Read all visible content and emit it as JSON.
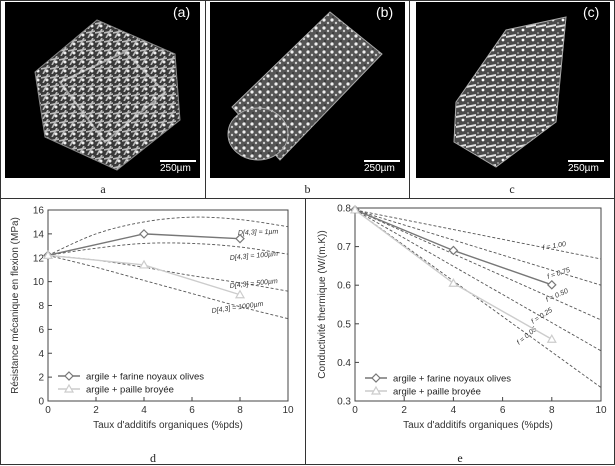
{
  "top_panels": [
    {
      "tag": "(a)",
      "scale": "250µm",
      "label": "a"
    },
    {
      "tag": "(b)",
      "scale": "250µm",
      "label": "b"
    },
    {
      "tag": "(c)",
      "scale": "250µm",
      "label": "c"
    }
  ],
  "bottom_labels": {
    "d": "d",
    "e": "e"
  },
  "chart_data": [
    {
      "type": "line",
      "xlabel": "Taux d'additifs organiques (%pds)",
      "ylabel": "Résistance mécanique en flexion (MPa)",
      "xlim": [
        0,
        10
      ],
      "ylim": [
        0,
        16
      ],
      "xticks": [
        0,
        2,
        4,
        6,
        8,
        10
      ],
      "yticks": [
        0,
        2,
        4,
        6,
        8,
        10,
        12,
        14,
        16
      ],
      "series": [
        {
          "name": "argile + farine noyaux olives",
          "x": [
            0,
            4,
            8
          ],
          "y": [
            12.2,
            14.0,
            13.6
          ],
          "color": "#777777",
          "marker": "diamond"
        },
        {
          "name": "argile + paille broyée",
          "x": [
            0,
            4,
            8
          ],
          "y": [
            12.2,
            11.4,
            8.9
          ],
          "color": "#cccccc",
          "marker": "triangle"
        }
      ],
      "model_curves": [
        {
          "label": "D[4,3] = 1µm",
          "x": [
            0,
            2,
            4,
            6,
            8,
            10
          ],
          "y": [
            12.2,
            14.0,
            15.0,
            15.4,
            15.2,
            14.6
          ]
        },
        {
          "label": "D[4,3] = 100µm",
          "x": [
            0,
            2,
            4,
            6,
            8,
            10
          ],
          "y": [
            12.2,
            12.8,
            13.2,
            13.2,
            12.9,
            12.3
          ]
        },
        {
          "label": "D[4,3] = 500µm",
          "x": [
            0,
            2,
            4,
            6,
            8,
            10
          ],
          "y": [
            12.2,
            11.8,
            11.2,
            10.5,
            9.9,
            9.2
          ]
        },
        {
          "label": "D[4,3] = 1000µm",
          "x": [
            0,
            2,
            4,
            6,
            8,
            10
          ],
          "y": [
            12.2,
            11.2,
            10.1,
            9.0,
            7.9,
            6.9
          ]
        }
      ],
      "legend_position": "bottom-left",
      "grid": false
    },
    {
      "type": "line",
      "xlabel": "Taux d'additifs organiques (%pds)",
      "ylabel": "Conductivité thermique (W/(m.K))",
      "xlim": [
        0,
        10
      ],
      "ylim": [
        0.3,
        0.8
      ],
      "xticks": [
        0,
        2,
        4,
        6,
        8,
        10
      ],
      "yticks": [
        0.3,
        0.4,
        0.5,
        0.6,
        0.7,
        0.8
      ],
      "series": [
        {
          "name": "argile + farine noyaux olives",
          "x": [
            0,
            4,
            8
          ],
          "y": [
            0.795,
            0.69,
            0.601
          ],
          "color": "#777777",
          "marker": "diamond"
        },
        {
          "name": "argile + paille broyée",
          "x": [
            0,
            4,
            8
          ],
          "y": [
            0.795,
            0.605,
            0.46
          ],
          "color": "#cccccc",
          "marker": "triangle"
        }
      ],
      "model_curves": [
        {
          "label": "f = 1.00",
          "x": [
            0,
            10
          ],
          "y": [
            0.795,
            0.668
          ]
        },
        {
          "label": "f = 0.75",
          "x": [
            0,
            10
          ],
          "y": [
            0.795,
            0.6
          ]
        },
        {
          "label": "f = 0.50",
          "x": [
            0,
            10
          ],
          "y": [
            0.795,
            0.51
          ]
        },
        {
          "label": "f = 0.25",
          "x": [
            0,
            10
          ],
          "y": [
            0.795,
            0.43
          ]
        },
        {
          "label": "f = 0.05",
          "x": [
            0,
            10
          ],
          "y": [
            0.795,
            0.335
          ]
        }
      ],
      "legend_position": "bottom-left",
      "grid": false
    }
  ]
}
